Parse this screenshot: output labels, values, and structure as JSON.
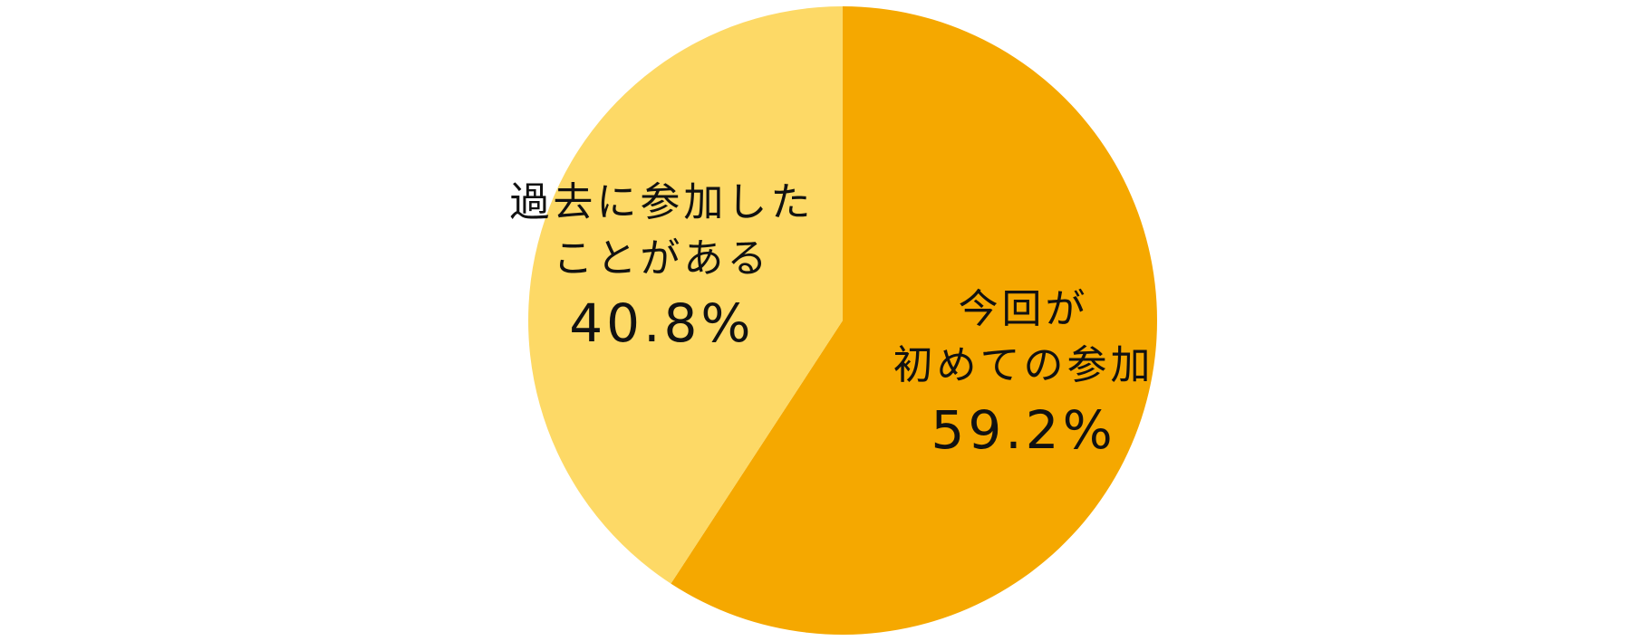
{
  "chart_data": {
    "type": "pie",
    "categories": [
      "今回が\n初めての参加",
      "過去に参加した\nことがある"
    ],
    "values": [
      59.2,
      40.8
    ],
    "value_labels": [
      "59.2%",
      "40.8%"
    ],
    "colors": [
      "#f5a800",
      "#fdd966"
    ]
  }
}
